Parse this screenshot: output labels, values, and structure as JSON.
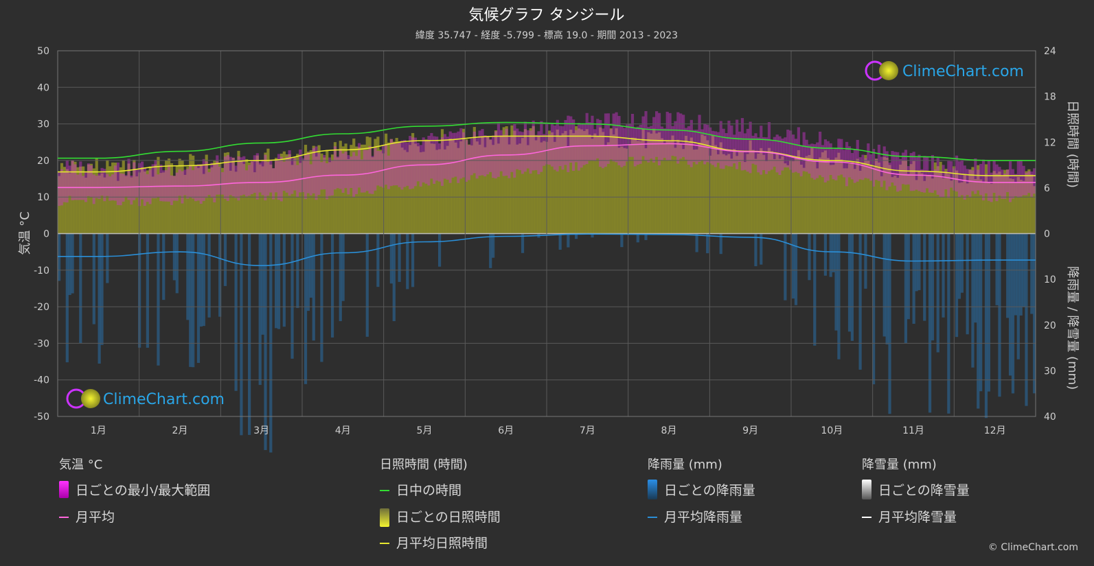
{
  "chart_data": {
    "type": "line",
    "title": "気候グラフ タンジール",
    "subtitle": "緯度 35.747 - 経度 -5.799 - 標高 19.0 - 期間 2013 - 2023",
    "categories": [
      "1月",
      "2月",
      "3月",
      "4月",
      "5月",
      "6月",
      "7月",
      "8月",
      "9月",
      "10月",
      "11月",
      "12月"
    ],
    "axes": {
      "left": {
        "label": "気温 °C",
        "ticks": [
          "50",
          "40",
          "30",
          "20",
          "10",
          "0",
          "-10",
          "-20",
          "-30",
          "-40",
          "-50"
        ],
        "range": [
          -50,
          50
        ]
      },
      "right_top": {
        "label": "日照時間 (時間)",
        "ticks": [
          "24",
          "18",
          "12",
          "6",
          "0"
        ],
        "range": [
          0,
          24
        ]
      },
      "right_bottom": {
        "label": "降雨量 / 降雪量 (mm)",
        "ticks": [
          "10",
          "20",
          "30",
          "40"
        ],
        "range": [
          0,
          40
        ]
      }
    },
    "series": [
      {
        "name": "日中の時間",
        "unit": "hours",
        "color": "#33dd33",
        "values": [
          9.9,
          10.8,
          11.9,
          13.1,
          14.1,
          14.6,
          14.4,
          13.6,
          12.4,
          11.2,
          10.1,
          9.6
        ]
      },
      {
        "name": "月平均日照時間",
        "unit": "hours",
        "color": "#e8e830",
        "values": [
          8.1,
          8.9,
          9.6,
          11.0,
          12.2,
          12.8,
          12.8,
          12.2,
          10.8,
          9.6,
          8.2,
          7.6
        ]
      },
      {
        "name": "月平均",
        "unit": "°C",
        "color": "#ff66dd",
        "values": [
          12.6,
          13.0,
          14.0,
          16.0,
          18.8,
          21.5,
          24.0,
          24.6,
          22.4,
          19.6,
          16.0,
          14.0
        ]
      },
      {
        "name": "月平均降雨量",
        "unit": "mm",
        "color": "#2a8fd8",
        "values": [
          5.0,
          4.0,
          7.0,
          4.2,
          1.8,
          0.6,
          0.1,
          0.2,
          0.8,
          4.0,
          6.0,
          5.8
        ]
      }
    ],
    "daily_temp_range": {
      "min": [
        9,
        9,
        10,
        11,
        14,
        16,
        19,
        20,
        18,
        15,
        12,
        10
      ],
      "max": [
        18,
        18,
        20,
        22,
        25,
        28,
        31,
        31,
        29,
        25,
        20,
        18
      ]
    },
    "legend": {
      "groups": [
        {
          "title": "気温 °C",
          "items": [
            {
              "label": "日ごとの最小/最大範囲",
              "swatch": "magenta-bar"
            },
            {
              "label": "月平均",
              "swatch": "pink-line"
            }
          ]
        },
        {
          "title": "日照時間 (時間)",
          "items": [
            {
              "label": "日中の時間",
              "swatch": "green-line"
            },
            {
              "label": "日ごとの日照時間",
              "swatch": "yellow-bar"
            },
            {
              "label": "月平均日照時間",
              "swatch": "yellow-line"
            }
          ]
        },
        {
          "title": "降雨量 (mm)",
          "items": [
            {
              "label": "日ごとの降雨量",
              "swatch": "blue-bar"
            },
            {
              "label": "月平均降雨量",
              "swatch": "blue-line"
            }
          ]
        },
        {
          "title": "降雪量 (mm)",
          "items": [
            {
              "label": "日ごとの降雪量",
              "swatch": "white-bar"
            },
            {
              "label": "月平均降雪量",
              "swatch": "white-line"
            }
          ]
        }
      ]
    }
  },
  "branding": {
    "logo_text": "ClimeChart.com",
    "copyright": "© ClimeChart.com"
  },
  "colors": {
    "background": "#2e2e2e",
    "grid": "#5a5a5a",
    "accent_blue": "#2aa6e8"
  }
}
